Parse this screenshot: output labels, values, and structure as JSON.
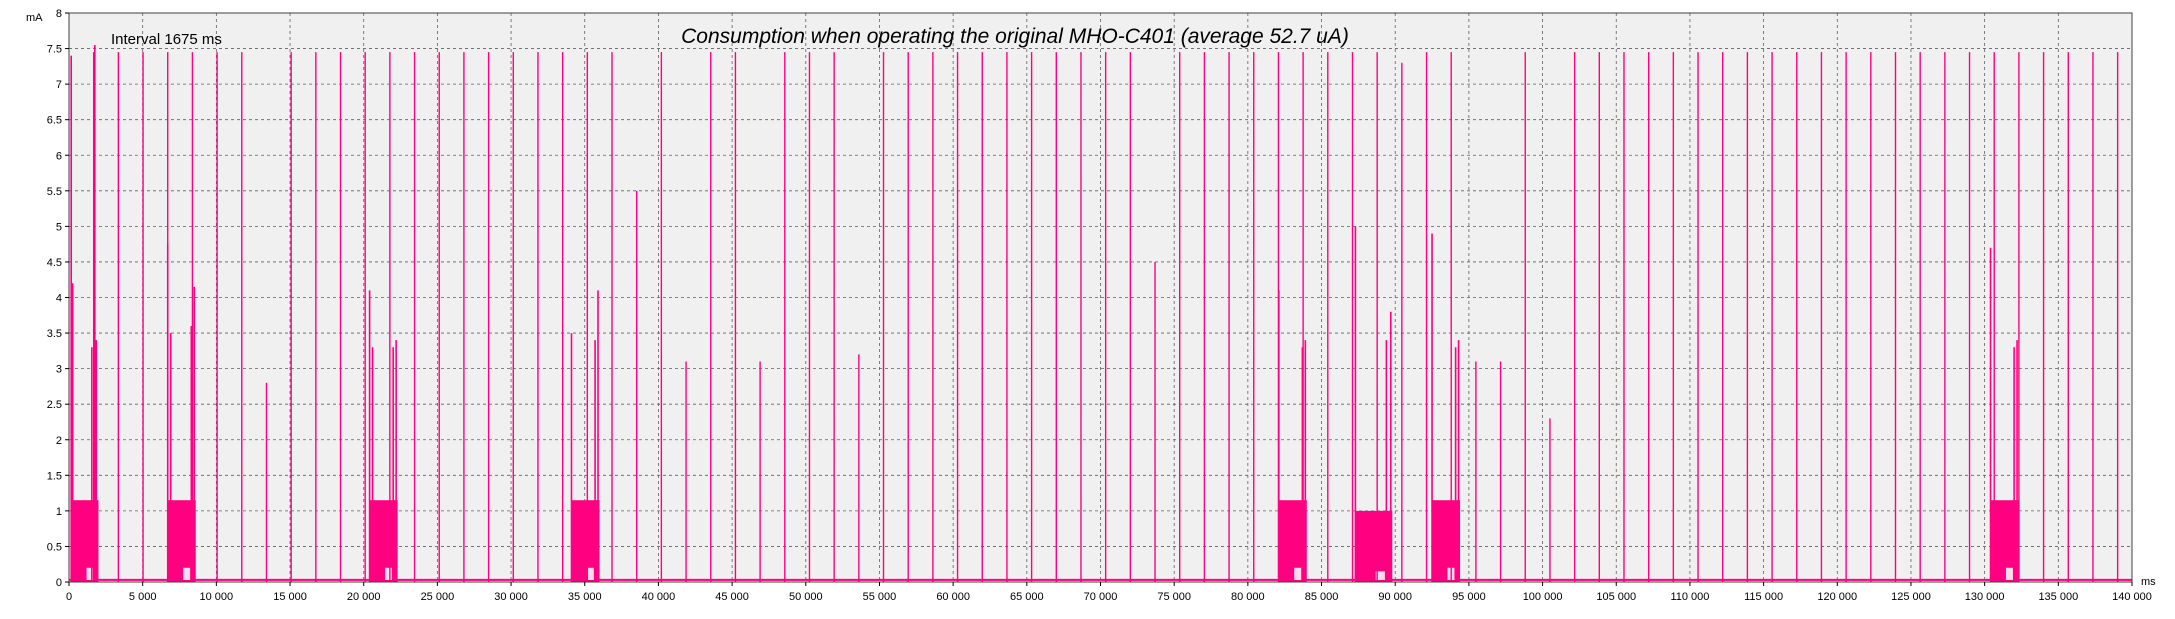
{
  "chart_data": {
    "type": "line",
    "title": "Consumption when operating the original MHO-C401 (average 52.7 uA)",
    "annotation": "Interval 1675 ms",
    "ylabel": "mA",
    "xlabel": "ms",
    "xlim": [
      0,
      140000
    ],
    "ylim": [
      0,
      8
    ],
    "grid": true,
    "colors": {
      "series": "#ff0080",
      "plot_bg": "#f0f0f0",
      "grid": "#606060"
    },
    "x_ticks": [
      {
        "v": 0,
        "label": "0"
      },
      {
        "v": 5000,
        "label": "5 000"
      },
      {
        "v": 10000,
        "label": "10 000"
      },
      {
        "v": 15000,
        "label": "15 000"
      },
      {
        "v": 20000,
        "label": "20 000"
      },
      {
        "v": 25000,
        "label": "25 000"
      },
      {
        "v": 30000,
        "label": "30 000"
      },
      {
        "v": 35000,
        "label": "35 000"
      },
      {
        "v": 40000,
        "label": "40 000"
      },
      {
        "v": 45000,
        "label": "45 000"
      },
      {
        "v": 50000,
        "label": "50 000"
      },
      {
        "v": 55000,
        "label": "55 000"
      },
      {
        "v": 60000,
        "label": "60 000"
      },
      {
        "v": 65000,
        "label": "65 000"
      },
      {
        "v": 70000,
        "label": "70 000"
      },
      {
        "v": 75000,
        "label": "75 000"
      },
      {
        "v": 80000,
        "label": "80 000"
      },
      {
        "v": 85000,
        "label": "85 000"
      },
      {
        "v": 90000,
        "label": "90 000"
      },
      {
        "v": 95000,
        "label": "95 000"
      },
      {
        "v": 100000,
        "label": "100 000"
      },
      {
        "v": 105000,
        "label": "105 000"
      },
      {
        "v": 110000,
        "label": "110 000"
      },
      {
        "v": 115000,
        "label": "115 000"
      },
      {
        "v": 120000,
        "label": "120 000"
      },
      {
        "v": 125000,
        "label": "125 000"
      },
      {
        "v": 130000,
        "label": "130 000"
      },
      {
        "v": 135000,
        "label": "135 000"
      },
      {
        "v": 140000,
        "label": "140 000"
      }
    ],
    "y_ticks": [
      {
        "v": 0,
        "label": "0"
      },
      {
        "v": 0.5,
        "label": "0.5"
      },
      {
        "v": 1,
        "label": "1"
      },
      {
        "v": 1.5,
        "label": "1.5"
      },
      {
        "v": 2,
        "label": "2"
      },
      {
        "v": 2.5,
        "label": "2.5"
      },
      {
        "v": 3,
        "label": "3"
      },
      {
        "v": 3.5,
        "label": "3.5"
      },
      {
        "v": 4,
        "label": "4"
      },
      {
        "v": 4.5,
        "label": "4.5"
      },
      {
        "v": 5,
        "label": "5"
      },
      {
        "v": 5.5,
        "label": "5.5"
      },
      {
        "v": 6,
        "label": "6"
      },
      {
        "v": 6.5,
        "label": "6.5"
      },
      {
        "v": 7,
        "label": "7"
      },
      {
        "v": 7.5,
        "label": "7.5"
      },
      {
        "v": 8,
        "label": "8"
      }
    ],
    "baseline_ma": 0.03,
    "interval_ms": 1675,
    "pulse_start_ms": 0,
    "pulse_peak_ma": 7.45,
    "pulse_peak_overrides": [
      {
        "x": 13500,
        "peak": 2.8
      },
      {
        "x": 39100,
        "peak": 5.5
      },
      {
        "x": 42500,
        "peak": 3.1
      },
      {
        "x": 47600,
        "peak": 3.1
      },
      {
        "x": 54300,
        "peak": 3.2
      },
      {
        "x": 73100,
        "peak": 4.5
      },
      {
        "x": 89900,
        "peak": 7.3
      },
      {
        "x": 95600,
        "peak": 3.1
      },
      {
        "x": 97300,
        "peak": 3.1
      },
      {
        "x": 100600,
        "peak": 2.3
      }
    ],
    "bursts": [
      {
        "x0": 200,
        "x1": 2000,
        "level": 1.15,
        "floor": 0.2,
        "peaks": [
          {
            "x": 150,
            "y": 7.4
          },
          {
            "x": 250,
            "y": 4.2
          },
          {
            "x": 1550,
            "y": 3.3
          },
          {
            "x": 1750,
            "y": 7.55
          },
          {
            "x": 1850,
            "y": 3.4
          }
        ]
      },
      {
        "x0": 6700,
        "x1": 8600,
        "level": 1.15,
        "floor": 0.2,
        "peaks": [
          {
            "x": 6700,
            "y": 4.75
          },
          {
            "x": 6900,
            "y": 3.5
          },
          {
            "x": 8300,
            "y": 3.6
          },
          {
            "x": 8500,
            "y": 4.15
          }
        ]
      },
      {
        "x0": 20400,
        "x1": 22300,
        "level": 1.15,
        "floor": 0.2,
        "peaks": [
          {
            "x": 20400,
            "y": 4.1
          },
          {
            "x": 20600,
            "y": 3.3
          },
          {
            "x": 22000,
            "y": 3.3
          },
          {
            "x": 22200,
            "y": 3.4
          }
        ]
      },
      {
        "x0": 34100,
        "x1": 36000,
        "level": 1.15,
        "floor": 0.2,
        "peaks": [
          {
            "x": 34100,
            "y": 3.5
          },
          {
            "x": 35700,
            "y": 3.4
          },
          {
            "x": 35900,
            "y": 4.1
          }
        ]
      },
      {
        "x0": 82100,
        "x1": 84000,
        "level": 1.15,
        "floor": 0.2,
        "peaks": [
          {
            "x": 82100,
            "y": 4.1
          },
          {
            "x": 83700,
            "y": 3.3
          },
          {
            "x": 83900,
            "y": 3.4
          }
        ]
      },
      {
        "x0": 87300,
        "x1": 89800,
        "level": 1.0,
        "floor": 0.15,
        "peaks": [
          {
            "x": 87300,
            "y": 5.0
          },
          {
            "x": 89400,
            "y": 3.4
          },
          {
            "x": 89700,
            "y": 3.8
          }
        ]
      },
      {
        "x0": 92500,
        "x1": 94400,
        "level": 1.15,
        "floor": 0.2,
        "peaks": [
          {
            "x": 92500,
            "y": 4.9
          },
          {
            "x": 94100,
            "y": 3.3
          },
          {
            "x": 94300,
            "y": 3.4
          }
        ]
      },
      {
        "x0": 130400,
        "x1": 132300,
        "level": 1.15,
        "floor": 0.2,
        "peaks": [
          {
            "x": 130400,
            "y": 4.7
          },
          {
            "x": 132000,
            "y": 3.3
          },
          {
            "x": 132200,
            "y": 3.4
          }
        ]
      }
    ]
  }
}
